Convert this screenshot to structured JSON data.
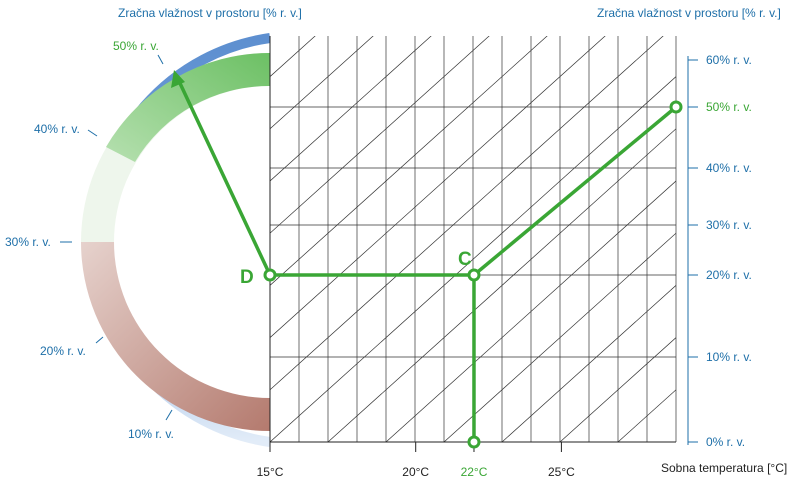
{
  "header": {
    "left_title": "Zračna vlažnost v prostoru [% r. v.]",
    "right_title": "Zračna vlažnost v prostoru [% r. v.]"
  },
  "colors": {
    "blue": "#1e6fa8",
    "green": "#3aa635",
    "arc_blue": "#6f9fd6",
    "arc_red": "#b47a6e",
    "arc_green": "#6cc064"
  },
  "dial": {
    "labels": [
      "10% r. v.",
      "20% r. v.",
      "30% r. v.",
      "40% r. v.",
      "50% r. v."
    ],
    "highlight_index": 4
  },
  "chart_data": {
    "type": "diagram",
    "x_axis": {
      "label": "Sobna temperatura [°C]",
      "ticks": [
        {
          "label": "15°C",
          "value": 15
        },
        {
          "label": "20°C",
          "value": 20
        },
        {
          "label": "22°C",
          "value": 22,
          "highlight": true
        },
        {
          "label": "25°C",
          "value": 25
        }
      ]
    },
    "y_axis": {
      "label": "Zračna vlažnost v prostoru [% r. v.]",
      "ticks": [
        {
          "label": "0% r. v.",
          "value": 0
        },
        {
          "label": "10% r. v.",
          "value": 10
        },
        {
          "label": "20% r. v.",
          "value": 20
        },
        {
          "label": "30% r. v.",
          "value": 30
        },
        {
          "label": "40% r. v.",
          "value": 40
        },
        {
          "label": "50% r. v.",
          "value": 50,
          "highlight": true
        },
        {
          "label": "60% r. v.",
          "value": 60
        }
      ]
    },
    "points": [
      {
        "label": "C",
        "temperature": 22,
        "humidity": 20
      },
      {
        "label": "D",
        "temperature": 15,
        "humidity": 20
      }
    ]
  }
}
